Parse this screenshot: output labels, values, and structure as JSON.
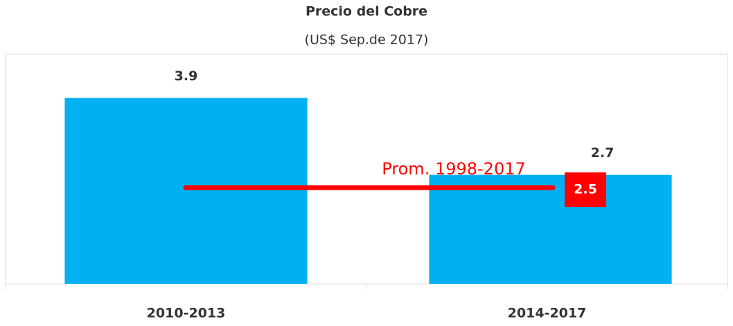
{
  "chart_data": {
    "type": "bar",
    "title": "Precio del Cobre",
    "subtitle": "(US$ Sep.de 2017)",
    "categories": [
      "2010-2013",
      "2014-2017"
    ],
    "values": [
      3.9,
      2.7
    ],
    "color": "#00b0f0",
    "ylim": [
      1,
      4.5
    ],
    "reference_line": {
      "label": "Prom. 1998-2017",
      "value": 2.5,
      "color": "#ff0000"
    }
  }
}
